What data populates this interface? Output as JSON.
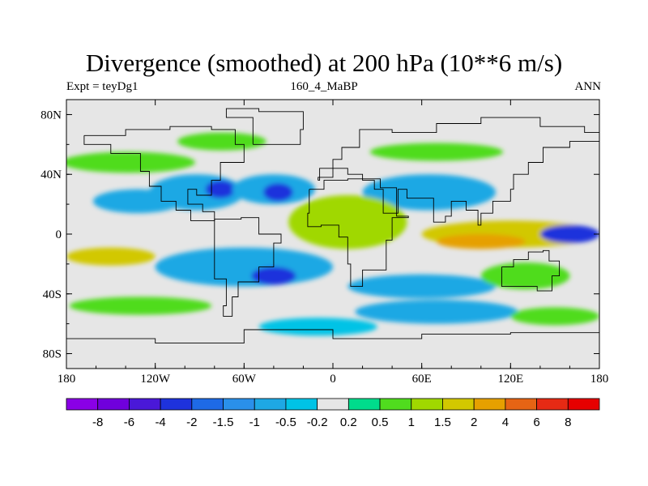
{
  "chart_data": {
    "type": "heatmap",
    "title": "Divergence (smoothed) at 200 hPa (10**6 m/s)",
    "subtitle_left": "Expt = teyDg1",
    "subtitle_center": "160_4_MaBP",
    "subtitle_right": "ANN",
    "x_ticks": [
      {
        "value": -180,
        "label": "180"
      },
      {
        "value": -120,
        "label": "120W"
      },
      {
        "value": -60,
        "label": "60W"
      },
      {
        "value": 0,
        "label": "0"
      },
      {
        "value": 60,
        "label": "60E"
      },
      {
        "value": 120,
        "label": "120E"
      },
      {
        "value": 180,
        "label": "180"
      }
    ],
    "y_ticks": [
      {
        "value": 80,
        "label": "80N"
      },
      {
        "value": 40,
        "label": "40N"
      },
      {
        "value": 0,
        "label": "0"
      },
      {
        "value": -40,
        "label": "40S"
      },
      {
        "value": -80,
        "label": "80S"
      }
    ],
    "xlim": [
      -180,
      180
    ],
    "ylim": [
      -90,
      90
    ],
    "colorbar": {
      "levels": [
        "-8",
        "-6",
        "-4",
        "-2",
        "-1.5",
        "-1",
        "-0.5",
        "-0.2",
        "0.2",
        "0.5",
        "1",
        "1.5",
        "2",
        "4",
        "6",
        "8"
      ],
      "colors": [
        "#8a00e6",
        "#7000dc",
        "#4a18d8",
        "#1e32dc",
        "#1e6ae6",
        "#2a90ea",
        "#1ea8e4",
        "#00c3e6",
        "#e6e6e6",
        "#00dc8c",
        "#50dc1e",
        "#a0d800",
        "#d2c800",
        "#e6a000",
        "#e66414",
        "#e62a14",
        "#e60000"
      ]
    },
    "regions": [
      {
        "lon": -132,
        "lat": 22,
        "rx": 30,
        "ry": 8,
        "value": -1.0
      },
      {
        "lon": -92,
        "lat": 28,
        "rx": 32,
        "ry": 12,
        "value": -1.0
      },
      {
        "lon": -76,
        "lat": 30,
        "rx": 10,
        "ry": 6,
        "value": -2.5
      },
      {
        "lon": -40,
        "lat": 30,
        "rx": 28,
        "ry": 10,
        "value": -1.0
      },
      {
        "lon": -37,
        "lat": 28,
        "rx": 10,
        "ry": 6,
        "value": -2.5
      },
      {
        "lon": 65,
        "lat": 28,
        "rx": 45,
        "ry": 12,
        "value": -0.7
      },
      {
        "lon": -138,
        "lat": 48,
        "rx": 45,
        "ry": 7,
        "value": 0.8
      },
      {
        "lon": -75,
        "lat": 62,
        "rx": 30,
        "ry": 6,
        "value": 0.6
      },
      {
        "lon": 70,
        "lat": 55,
        "rx": 45,
        "ry": 6,
        "value": 0.6
      },
      {
        "lon": 10,
        "lat": 8,
        "rx": 40,
        "ry": 18,
        "value": 1.0
      },
      {
        "lon": 120,
        "lat": 0,
        "rx": 60,
        "ry": 9,
        "value": 1.8
      },
      {
        "lon": 100,
        "lat": -5,
        "rx": 30,
        "ry": 5,
        "value": 2.5
      },
      {
        "lon": 160,
        "lat": 0,
        "rx": 20,
        "ry": 6,
        "value": -2.5
      },
      {
        "lon": -150,
        "lat": -15,
        "rx": 30,
        "ry": 6,
        "value": 1.5
      },
      {
        "lon": -60,
        "lat": -22,
        "rx": 60,
        "ry": 13,
        "value": -1.0
      },
      {
        "lon": -40,
        "lat": -28,
        "rx": 15,
        "ry": 6,
        "value": -2.5
      },
      {
        "lon": 60,
        "lat": -35,
        "rx": 50,
        "ry": 8,
        "value": -0.7
      },
      {
        "lon": 130,
        "lat": -28,
        "rx": 30,
        "ry": 9,
        "value": 0.7
      },
      {
        "lon": -130,
        "lat": -48,
        "rx": 48,
        "ry": 6,
        "value": 0.6
      },
      {
        "lon": 70,
        "lat": -52,
        "rx": 55,
        "ry": 8,
        "value": -0.7
      },
      {
        "lon": 150,
        "lat": -55,
        "rx": 30,
        "ry": 6,
        "value": 0.5
      },
      {
        "lon": -10,
        "lat": -62,
        "rx": 40,
        "ry": 6,
        "value": -0.5
      }
    ]
  }
}
